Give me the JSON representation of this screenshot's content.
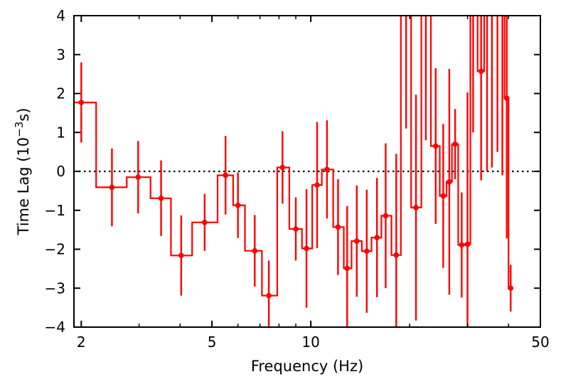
{
  "chart_data": {
    "type": "line",
    "title": "",
    "xlabel": "Frequency (Hz)",
    "ylabel_main": "Time Lag (10",
    "ylabel_exp": "−3",
    "ylabel_end": "s)",
    "x_scale": "log",
    "xlim": [
      1.9,
      50
    ],
    "ylim": [
      -4,
      4
    ],
    "x_ticks": [
      {
        "value": 2,
        "label": "2"
      },
      {
        "value": 5,
        "label": "5"
      },
      {
        "value": 10,
        "label": "10"
      },
      {
        "value": 50,
        "label": "50"
      }
    ],
    "y_ticks": [
      {
        "value": -4,
        "label": "−4"
      },
      {
        "value": -3,
        "label": "−3"
      },
      {
        "value": -2,
        "label": "−2"
      },
      {
        "value": -1,
        "label": "−1"
      },
      {
        "value": 0,
        "label": "0"
      },
      {
        "value": 1,
        "label": "1"
      },
      {
        "value": 2,
        "label": "2"
      },
      {
        "value": 3,
        "label": "3"
      },
      {
        "value": 4,
        "label": "4"
      }
    ],
    "reference_line": 0,
    "series_color": "#ff0000",
    "series": [
      {
        "points": [
          {
            "x": 2.0,
            "xlo": 1.9,
            "xhi": 2.22,
            "y": 1.77,
            "err": 1.03
          },
          {
            "x": 2.48,
            "xlo": 2.22,
            "xhi": 2.75,
            "y": -0.41,
            "err": 1.0
          },
          {
            "x": 2.98,
            "xlo": 2.75,
            "xhi": 3.25,
            "y": -0.15,
            "err": 0.93
          },
          {
            "x": 3.5,
            "xlo": 3.25,
            "xhi": 3.75,
            "y": -0.69,
            "err": 0.97
          },
          {
            "x": 4.03,
            "xlo": 3.75,
            "xhi": 4.35,
            "y": -2.16,
            "err": 1.03
          },
          {
            "x": 4.75,
            "xlo": 4.35,
            "xhi": 5.2,
            "y": -1.31,
            "err": 0.73
          },
          {
            "x": 5.5,
            "xlo": 5.2,
            "xhi": 5.8,
            "y": -0.1,
            "err": 1.01
          },
          {
            "x": 6.0,
            "xlo": 5.8,
            "xhi": 6.3,
            "y": -0.87,
            "err": 0.84
          },
          {
            "x": 6.75,
            "xlo": 6.3,
            "xhi": 7.1,
            "y": -2.04,
            "err": 0.92
          },
          {
            "x": 7.45,
            "xlo": 7.1,
            "xhi": 7.9,
            "y": -3.19,
            "err": 0.9
          },
          {
            "x": 8.2,
            "xlo": 7.9,
            "xhi": 8.6,
            "y": 0.1,
            "err": 0.93
          },
          {
            "x": 9.0,
            "xlo": 8.6,
            "xhi": 9.4,
            "y": -1.48,
            "err": 0.81
          },
          {
            "x": 9.7,
            "xlo": 9.4,
            "xhi": 10.1,
            "y": -1.98,
            "err": 1.52
          },
          {
            "x": 10.45,
            "xlo": 10.1,
            "xhi": 10.8,
            "y": -0.35,
            "err": 1.62
          },
          {
            "x": 11.2,
            "xlo": 10.8,
            "xhi": 11.7,
            "y": 0.05,
            "err": 1.26
          },
          {
            "x": 12.1,
            "xlo": 11.7,
            "xhi": 12.6,
            "y": -1.43,
            "err": 1.23
          },
          {
            "x": 12.9,
            "xlo": 12.6,
            "xhi": 13.3,
            "y": -2.49,
            "err": 1.6
          },
          {
            "x": 13.8,
            "xlo": 13.3,
            "xhi": 14.3,
            "y": -1.79,
            "err": 1.43
          },
          {
            "x": 14.8,
            "xlo": 14.3,
            "xhi": 15.3,
            "y": -2.05,
            "err": 1.58
          },
          {
            "x": 15.9,
            "xlo": 15.3,
            "xhi": 16.4,
            "y": -1.7,
            "err": 1.53
          },
          {
            "x": 16.9,
            "xlo": 16.4,
            "xhi": 17.6,
            "y": -1.14,
            "err": 1.86
          },
          {
            "x": 18.2,
            "xlo": 17.6,
            "xhi": 18.8,
            "y": -2.15,
            "err": 2.6
          },
          {
            "x": 19.5,
            "xlo": 18.8,
            "xhi": 20.2,
            "y": 4.3,
            "err": 3.2
          },
          {
            "x": 20.9,
            "xlo": 20.2,
            "xhi": 21.7,
            "y": -0.93,
            "err": 2.9
          },
          {
            "x": 22.4,
            "xlo": 21.7,
            "xhi": 23.2,
            "y": 4.2,
            "err": 3.4
          },
          {
            "x": 24.0,
            "xlo": 23.2,
            "xhi": 24.7,
            "y": 0.65,
            "err": 2.0
          },
          {
            "x": 25.3,
            "xlo": 24.7,
            "xhi": 25.9,
            "y": -0.63,
            "err": 1.85
          },
          {
            "x": 26.4,
            "xlo": 25.9,
            "xhi": 26.9,
            "y": -0.27,
            "err": 2.9
          },
          {
            "x": 27.5,
            "xlo": 26.9,
            "xhi": 28.1,
            "y": 0.7,
            "err": 0.9
          },
          {
            "x": 28.8,
            "xlo": 28.1,
            "xhi": 29.4,
            "y": -1.89,
            "err": 1.35
          },
          {
            "x": 30.0,
            "xlo": 29.4,
            "xhi": 30.6,
            "y": -1.87,
            "err": 3.9
          },
          {
            "x": 31.2,
            "xlo": 30.6,
            "xhi": 32.2,
            "y": 4.5,
            "err": 3.5
          },
          {
            "x": 33.0,
            "xlo": 32.2,
            "xhi": 33.7,
            "y": 2.57,
            "err": 2.8
          },
          {
            "x": 34.4,
            "xlo": 33.7,
            "xhi": 35.0,
            "y": 4.2,
            "err": 4.2
          },
          {
            "x": 35.6,
            "xlo": 35.0,
            "xhi": 36.3,
            "y": 4.3,
            "err": 4.2
          },
          {
            "x": 37.0,
            "xlo": 36.3,
            "xhi": 37.7,
            "y": 4.5,
            "err": 4.0
          },
          {
            "x": 38.3,
            "xlo": 37.7,
            "xhi": 38.9,
            "y": 4.3,
            "err": 4.4
          },
          {
            "x": 39.5,
            "xlo": 38.9,
            "xhi": 40.0,
            "y": 1.88,
            "err": 3.6
          },
          {
            "x": 40.6,
            "xlo": 40.0,
            "xhi": 41.3,
            "y": -3.0,
            "err": 0.6
          }
        ]
      }
    ]
  }
}
